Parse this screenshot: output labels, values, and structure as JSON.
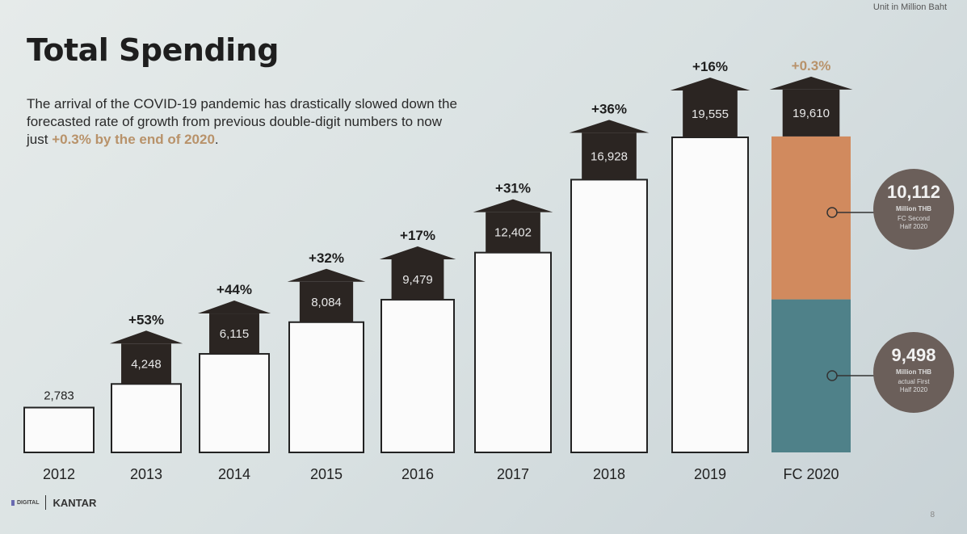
{
  "title": "Total Spending",
  "description": {
    "text": "The arrival of the COVID-19 pandemic has drastically slowed down the forecasted rate of growth from previous double-digit numbers to now just ",
    "highlight": "+0.3% by the end of 2020",
    "end": "."
  },
  "unit": "Unit in Million Baht",
  "footer": {
    "logo_digital": "DIGITAL",
    "logo_kantar": "KANTAR",
    "page": "8"
  },
  "colors": {
    "arrow": "#2b2522",
    "orange": "#d18a5e",
    "teal": "#4f8189",
    "callout": "#6b5f5a",
    "highlight": "#b8926a"
  },
  "chart_data": {
    "type": "bar",
    "categories": [
      "2012",
      "2013",
      "2014",
      "2015",
      "2016",
      "2017",
      "2018",
      "2019",
      "FC 2020"
    ],
    "values": [
      2783,
      4248,
      6115,
      8084,
      9479,
      12402,
      16928,
      19555,
      19610
    ],
    "value_labels": [
      "2,783",
      "4,248",
      "6,115",
      "8,084",
      "9,479",
      "12,402",
      "16,928",
      "19,555",
      "19,610"
    ],
    "growth": [
      "",
      "+53%",
      "+44%",
      "+32%",
      "+17%",
      "+31%",
      "+36%",
      "+16%",
      "+0.3%"
    ],
    "stack_2020": [
      {
        "name": "actual First Half 2020",
        "value": 9498,
        "label": "9,498",
        "unit": "Million THB",
        "note": "actual First Half 2020"
      },
      {
        "name": "FC Second Half 2020",
        "value": 10112,
        "label": "10,112",
        "unit": "Million THB",
        "note": "FC Second Half 2020"
      }
    ],
    "ylim": [
      0,
      20000
    ]
  }
}
